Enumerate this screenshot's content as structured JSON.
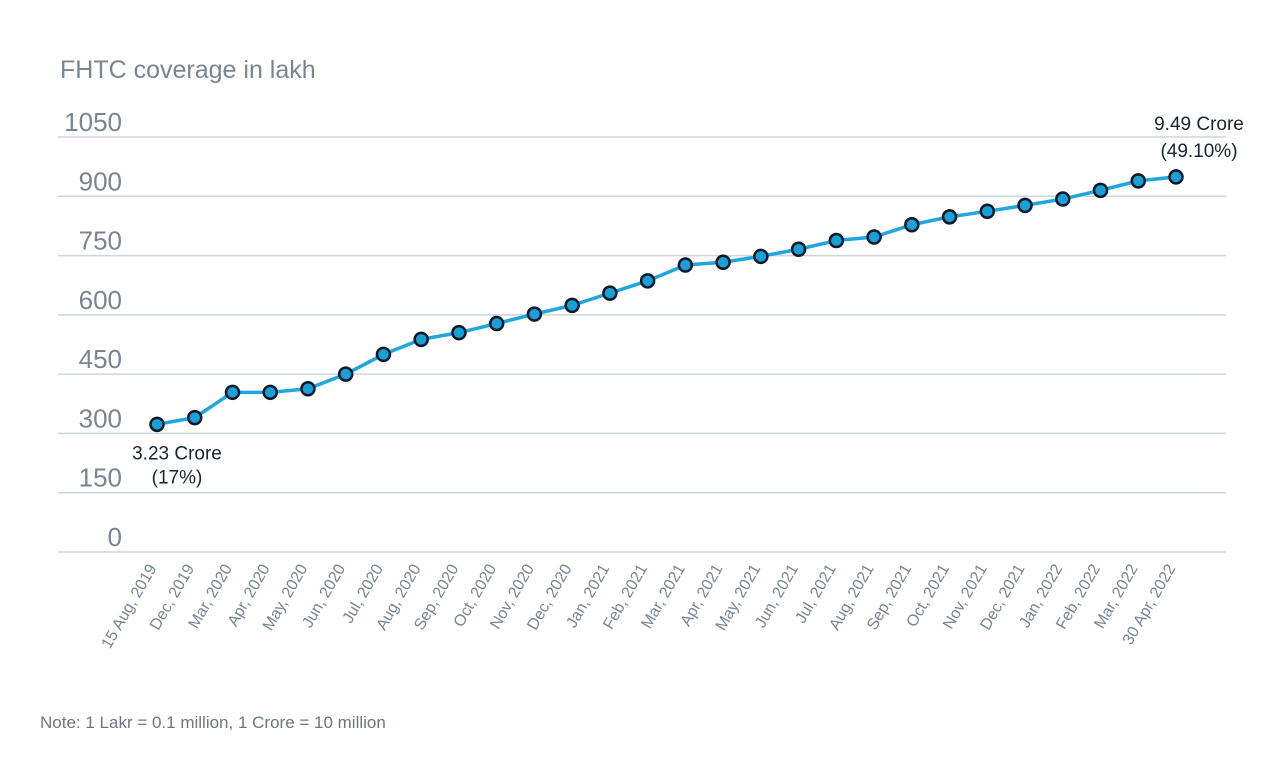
{
  "chart_data": {
    "type": "line",
    "ylabel": "FHTC coverage in lakh",
    "ylim": [
      0,
      1050
    ],
    "yticks": [
      0,
      150,
      300,
      450,
      600,
      750,
      900,
      1050
    ],
    "grid": true,
    "categories": [
      "15 Aug, 2019",
      "Dec, 2019",
      "Mar, 2020",
      "Apr, 2020",
      "May, 2020",
      "Jun, 2020",
      "Jul, 2020",
      "Aug, 2020",
      "Sep, 2020",
      "Oct, 2020",
      "Nov, 2020",
      "Dec, 2020",
      "Jan, 2021",
      "Feb, 2021",
      "Mar, 2021",
      "Apr, 2021",
      "May, 2021",
      "Jun, 2021",
      "Jul, 2021",
      "Aug, 2021",
      "Sep, 2021",
      "Oct, 2021",
      "Nov, 2021",
      "Dec, 2021",
      "Jan, 2022",
      "Feb, 2022",
      "Mar, 2022",
      "30 Apr, 2022"
    ],
    "series": [
      {
        "values": [
          323,
          340,
          404,
          404,
          413,
          450,
          500,
          538,
          555,
          578,
          602,
          624,
          655,
          686,
          726,
          733,
          748,
          766,
          788,
          797,
          828,
          848,
          862,
          877,
          893,
          915,
          939,
          949
        ]
      }
    ],
    "annotations": [
      {
        "index": 0,
        "line1": "3.23 Crore",
        "line2": "(17%)"
      },
      {
        "index": 27,
        "line1": "9.49 Crore",
        "line2": "(49.10%)"
      }
    ],
    "note": "Note: 1 Lakr = 0.1 million, 1 Crore = 10 million",
    "colors": {
      "line": "#1ea6dd",
      "marker": "#1a9fd6",
      "marker_edge": "#0b1a2a",
      "grid": "#cfd4d9",
      "axis_text": "#7a8590",
      "annotation_text": "#1a2530"
    }
  }
}
